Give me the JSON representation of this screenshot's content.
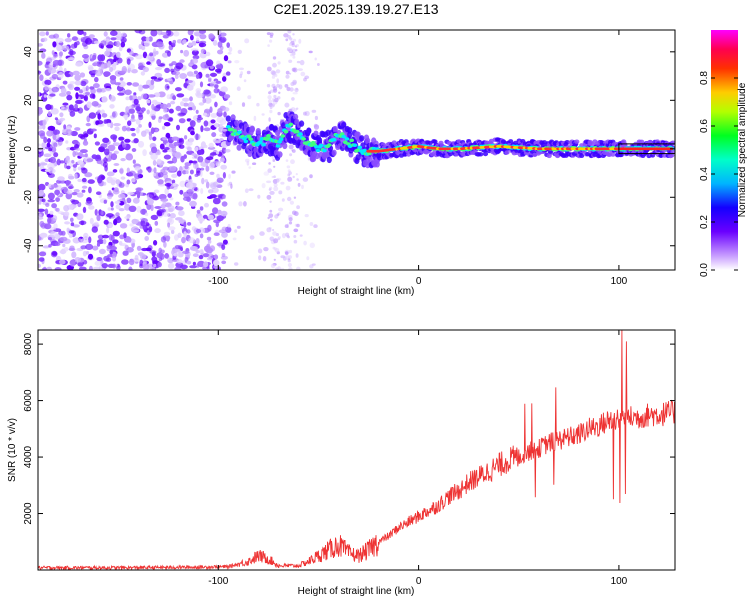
{
  "title": "C2E1.2025.139.19.27.E13",
  "chart_data": [
    {
      "type": "heatmap",
      "title": "C2E1.2025.139.19.27.E13",
      "xlabel": "Height of straight line (km)",
      "ylabel": "Frequency (Hz)",
      "xlim": [
        -190,
        128
      ],
      "ylim": [
        -50,
        49
      ],
      "xticks": [
        -100,
        0,
        100
      ],
      "yticks": [
        40,
        20,
        0,
        -20,
        -40
      ],
      "colorbar": {
        "label": "Normalized spectral amplitude",
        "range": [
          0,
          1
        ],
        "ticks": [
          0.0,
          0.2,
          0.4,
          0.6,
          0.8
        ],
        "colormap": [
          "#ffffff",
          "#b070ff",
          "#2000ff",
          "#00e0ff",
          "#00ff40",
          "#ffd000",
          "#ff2000",
          "#ff00ff"
        ]
      },
      "ridge": {
        "x": [
          -95,
          -90,
          -85,
          -80,
          -75,
          -70,
          -65,
          -60,
          -55,
          -50,
          -45,
          -40,
          -35,
          -30,
          -25,
          -20,
          -10,
          0,
          10,
          20,
          40,
          60,
          80,
          100,
          128
        ],
        "y": [
          8,
          6,
          4,
          2,
          4,
          2,
          10,
          6,
          2,
          0,
          1,
          6,
          3,
          0,
          -1,
          -1,
          0,
          1,
          0,
          0,
          1,
          0,
          0,
          0,
          0
        ]
      },
      "grid": false
    },
    {
      "type": "line",
      "xlabel": "Height of straight line (km)",
      "ylabel": "SNR (10 * v/v)",
      "xlim": [
        -190,
        128
      ],
      "ylim": [
        0,
        8500
      ],
      "xticks": [
        -100,
        0,
        100
      ],
      "yticks": [
        2000,
        4000,
        6000,
        8000
      ],
      "series": [
        {
          "color": "#ee3333",
          "x": [
            -190,
            -150,
            -110,
            -95,
            -85,
            -80,
            -75,
            -70,
            -60,
            -55,
            -50,
            -45,
            -40,
            -35,
            -30,
            -25,
            -20,
            -15,
            -10,
            -5,
            0,
            5,
            10,
            15,
            20,
            25,
            30,
            35,
            40,
            45,
            50,
            55,
            60,
            65,
            70,
            75,
            80,
            85,
            90,
            95,
            100,
            105,
            110,
            115,
            120,
            128
          ],
          "y": [
            80,
            80,
            100,
            120,
            300,
            500,
            400,
            150,
            150,
            300,
            500,
            700,
            900,
            600,
            500,
            700,
            1000,
            1200,
            1500,
            1700,
            1900,
            2100,
            2300,
            2600,
            2800,
            3100,
            3300,
            3500,
            3700,
            3900,
            4000,
            4200,
            4300,
            4500,
            4600,
            4700,
            4800,
            5000,
            5100,
            5300,
            5400,
            5400,
            5400,
            5500,
            5500,
            5600
          ]
        }
      ],
      "grid": false
    }
  ]
}
